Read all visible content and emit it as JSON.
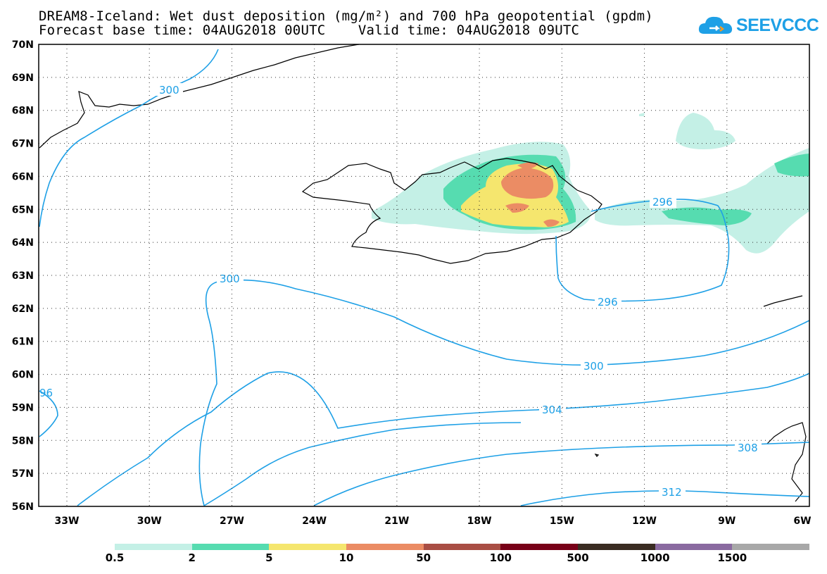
{
  "title": {
    "line1": "DREAM8-Iceland: Wet dust deposition (mg/m²) and 700 hPa geopotential (gpdm)",
    "line2": "Forecast base time: 04AUG2018 00UTC    Valid time: 04AUG2018 09UTC"
  },
  "logo": {
    "text": "SEEVCCC"
  },
  "axes": {
    "lat_labels": [
      "70N",
      "69N",
      "68N",
      "67N",
      "66N",
      "65N",
      "64N",
      "63N",
      "62N",
      "61N",
      "60N",
      "59N",
      "58N",
      "57N",
      "56N"
    ],
    "lon_labels": [
      "33W",
      "30W",
      "27W",
      "24W",
      "21W",
      "18W",
      "15W",
      "12W",
      "9W",
      "6W"
    ]
  },
  "contours": {
    "color": "#1ea0e6",
    "labels": [
      "300",
      "300",
      "300",
      "296",
      "296",
      "304",
      "308",
      "312",
      "96"
    ]
  },
  "colorbar": {
    "colors": [
      "#c4f0e6",
      "#56dcb0",
      "#f5e66e",
      "#eb8c64",
      "#a94e44",
      "#780018",
      "#3a2c22",
      "#8a6aa0",
      "#a8a8a8"
    ],
    "labels": [
      "0.5",
      "2",
      "5",
      "10",
      "50",
      "100",
      "500",
      "1000",
      "1500"
    ]
  }
}
